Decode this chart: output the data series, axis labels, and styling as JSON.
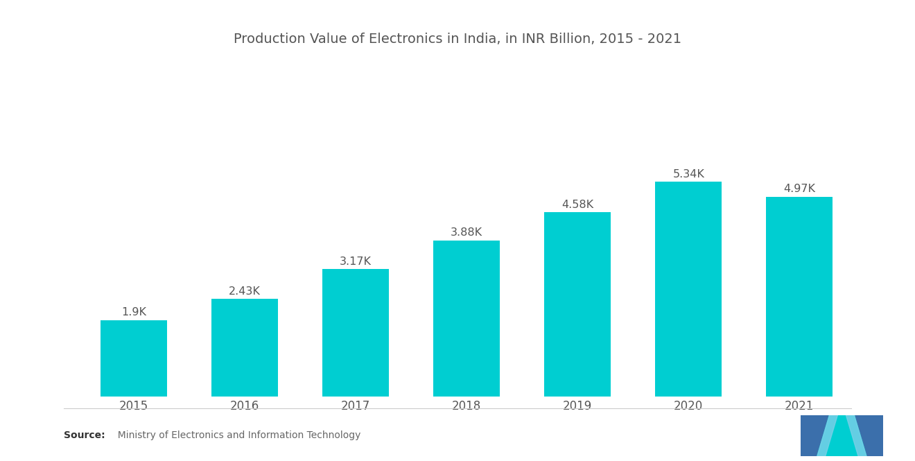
{
  "title": "Production Value of Electronics in India, in INR Billion, 2015 - 2021",
  "categories": [
    "2015",
    "2016",
    "2017",
    "2018",
    "2019",
    "2020",
    "2021"
  ],
  "values": [
    1900,
    2430,
    3170,
    3880,
    4580,
    5340,
    4970
  ],
  "labels": [
    "1.9K",
    "2.43K",
    "3.17K",
    "3.88K",
    "4.58K",
    "5.34K",
    "4.97K"
  ],
  "bar_color": "#00CED1",
  "background_color": "#FFFFFF",
  "title_fontsize": 14,
  "label_fontsize": 11.5,
  "tick_fontsize": 12,
  "source_bold": "Source:",
  "source_text": "  Ministry of Electronics and Information Technology",
  "ylim": [
    0,
    7800
  ],
  "bar_width": 0.6
}
